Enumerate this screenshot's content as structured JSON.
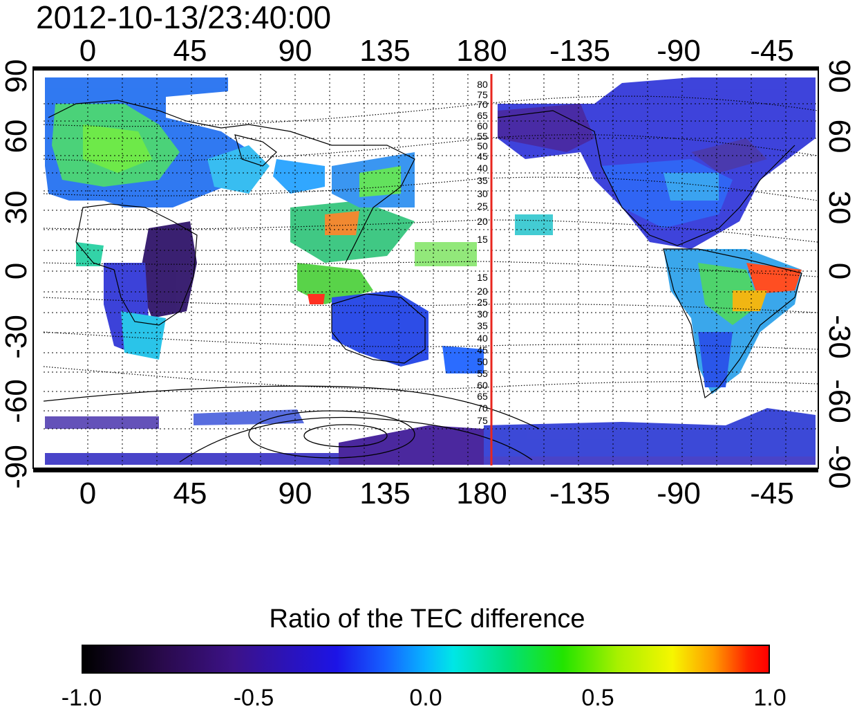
{
  "title": "2012-10-13/23:40:00",
  "map": {
    "top_lon_labels": [
      "0",
      "45",
      "90",
      "135",
      "180",
      "-135",
      "-90",
      "-45"
    ],
    "bottom_lon_labels": [
      "0",
      "45",
      "90",
      "135",
      "180",
      "-135",
      "-90",
      "-45"
    ],
    "left_lat_labels": [
      "90",
      "60",
      "30",
      "0",
      "-30",
      "-60",
      "-90"
    ],
    "right_lat_labels": [
      "90",
      "60",
      "30",
      "0",
      "-30",
      "-60",
      "-90"
    ],
    "contour_labels_north": [
      "80",
      "75",
      "70",
      "65",
      "60",
      "55",
      "50",
      "45",
      "40",
      "35",
      "30",
      "25",
      "20",
      "15"
    ],
    "contour_labels_south": [
      "15",
      "20",
      "25",
      "30",
      "35",
      "40",
      "45",
      "50",
      "55",
      "60",
      "65",
      "70",
      "75"
    ],
    "terminator_longitude": 187,
    "terminator_color": "#e8261e"
  },
  "colorbar": {
    "title": "Ratio of the TEC difference",
    "ticks": [
      "-1.0",
      "-0.5",
      "0.0",
      "0.5",
      "1.0"
    ],
    "range": [
      -1.0,
      1.0
    ]
  }
}
